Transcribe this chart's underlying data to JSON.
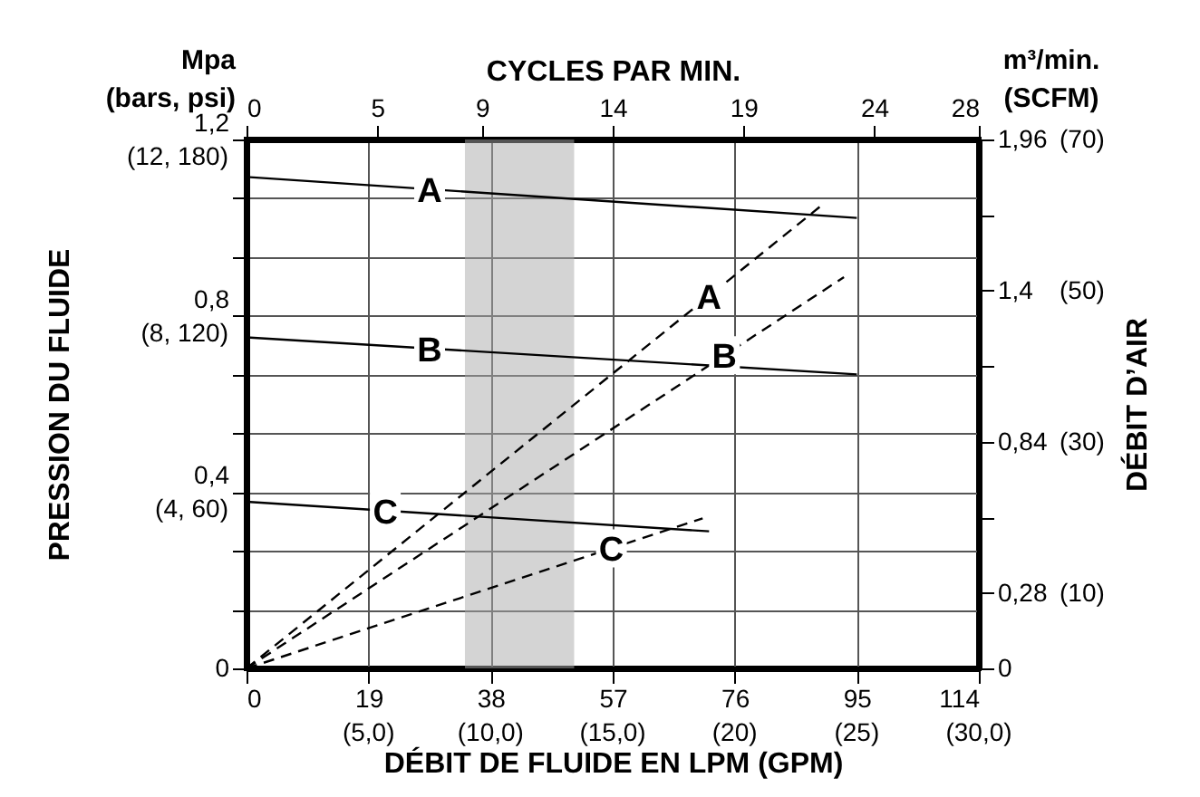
{
  "chart_data": {
    "type": "line",
    "xlabel": "DÉBIT DE FLUIDE EN LPM (GPM)",
    "x2label": "CYCLES PAR MIN.",
    "ylabel": "PRESSION DU FLUIDE",
    "y2label": "DÉBIT D’AIR",
    "annotations": [
      "Mpa\n(bars, psi)",
      "m³/min.\n(SCFM)",
      "(5,0)",
      "(10,0)",
      "(15,0)",
      "(20)",
      "(25)",
      "(30,0)",
      "(4, 60)",
      "(8, 120)",
      "(12, 180)"
    ],
    "xlim": [
      0,
      114
    ],
    "xticks": [
      0,
      19,
      38,
      57,
      76,
      95,
      114
    ],
    "x2lim": [
      0,
      28
    ],
    "x2ticks": [
      0,
      5,
      9,
      14,
      19,
      24,
      28
    ],
    "ylim": [
      0,
      1.2
    ],
    "yticks": [
      0,
      {
        "value": 0.133,
        "label": null
      },
      {
        "value": 0.267,
        "label": null
      },
      {
        "value": 0.4,
        "label": "0,4"
      },
      {
        "value": 0.533,
        "label": null
      },
      {
        "value": 0.667,
        "label": null
      },
      {
        "value": 0.8,
        "label": "0,8"
      },
      {
        "value": 0.933,
        "label": null
      },
      {
        "value": 1.067,
        "label": null
      },
      {
        "value": 1.2,
        "label": "1,2"
      }
    ],
    "y2lim": [
      0,
      1.96
    ],
    "y2ticks": [
      0,
      {
        "value": 0.28,
        "label": "0,28"
      },
      {
        "value": 0.56,
        "label": null
      },
      {
        "value": 0.84,
        "label": "0,84"
      },
      {
        "value": 1.12,
        "label": null
      },
      {
        "value": 1.4,
        "label": "1,4"
      },
      {
        "value": 1.68,
        "label": null
      },
      {
        "value": 1.96,
        "label": "1,96"
      }
    ],
    "y3lim": [
      0,
      70
    ],
    "y3ticks": [
      {
        "value": 10,
        "label": "(10)"
      },
      {
        "value": 30,
        "label": "(30)"
      },
      {
        "value": 50,
        "label": "(50)"
      },
      {
        "value": 70,
        "label": "(70)"
      }
    ],
    "grid": true,
    "bands": [
      {
        "axis": "x",
        "from": 34,
        "to": 51,
        "color": "#d4d4d4"
      }
    ],
    "series": [
      {
        "name": "A",
        "color": "#000000",
        "line_style": "solid",
        "x": [
          0,
          95
        ],
        "values": [
          1.115,
          1.022
        ]
      },
      {
        "name": "B",
        "color": "#000000",
        "line_style": "solid",
        "x": [
          0,
          95
        ],
        "values": [
          0.751,
          0.667
        ]
      },
      {
        "name": "C",
        "color": "#000000",
        "line_style": "solid",
        "x": [
          0,
          72
        ],
        "values": [
          0.378,
          0.311
        ]
      },
      {
        "name": "A",
        "color": "#000000",
        "line_style": "dashed",
        "axis": "y2",
        "x": [
          0,
          90
        ],
        "values": [
          0,
          1.725
        ]
      },
      {
        "name": "B",
        "color": "#000000",
        "line_style": "dashed",
        "axis": "y2",
        "x": [
          0,
          93
        ],
        "values": [
          0,
          1.45
        ]
      },
      {
        "name": "C",
        "color": "#000000",
        "line_style": "dashed",
        "axis": "y2",
        "x": [
          0,
          71
        ],
        "values": [
          0,
          0.556
        ]
      }
    ]
  }
}
